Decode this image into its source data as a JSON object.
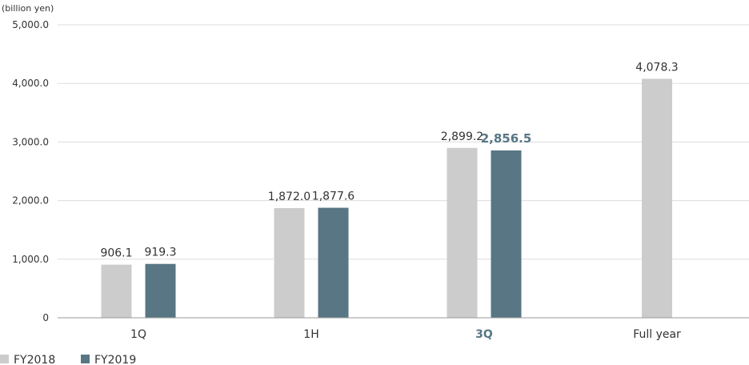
{
  "chart_data": {
    "type": "bar",
    "unit_label": "(billion yen)",
    "categories": [
      "1Q",
      "1H",
      "3Q",
      "Full year"
    ],
    "highlight_category": "3Q",
    "y_ticks": [
      "0",
      "1,000.0",
      "2,000.0",
      "3,000.0",
      "4,000.0",
      "5,000.0"
    ],
    "ylim": [
      0,
      5000
    ],
    "grid": true,
    "legend_position": "bottom-left",
    "series": [
      {
        "name": "FY2018",
        "color": "#cccccc",
        "values": [
          906.1,
          1872.0,
          2899.2,
          4078.3
        ],
        "labels": [
          "906.1",
          "1,872.0",
          "2,899.2",
          "4,078.3"
        ]
      },
      {
        "name": "FY2019",
        "color": "#587684",
        "values": [
          919.3,
          1877.6,
          2856.5,
          null
        ],
        "labels": [
          "919.3",
          "1,877.6",
          "2,856.5",
          null
        ]
      }
    ]
  }
}
